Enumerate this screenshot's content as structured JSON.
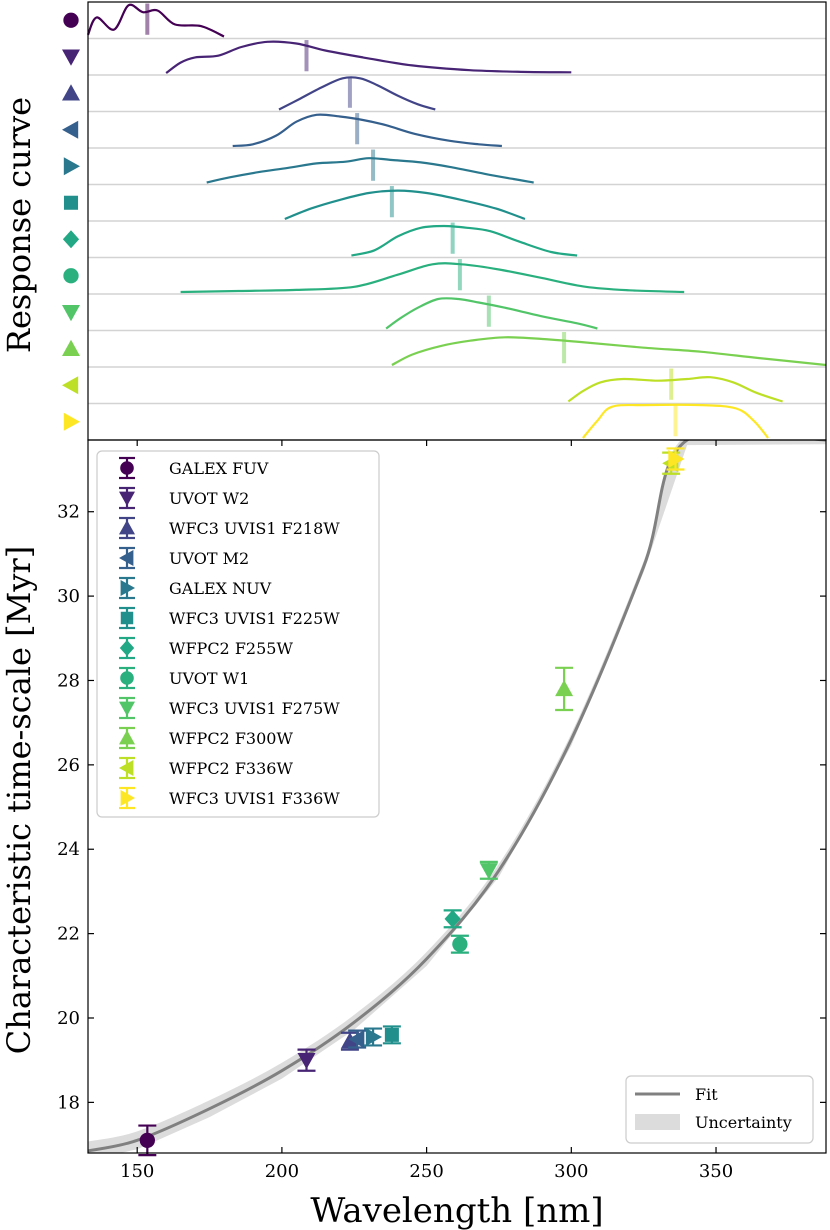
{
  "chart_data": {
    "type": "scatter",
    "xlabel": "Wavelength [nm]",
    "xlim": [
      133,
      388
    ],
    "xticks": [
      150,
      200,
      250,
      300,
      350
    ],
    "top_panel": {
      "ylabel": "Response curve",
      "type": "line"
    },
    "bottom_panel": {
      "ylabel": "Characteristic time-scale [Myr]",
      "ylim": [
        16.8,
        33.7
      ],
      "yticks": [
        18,
        20,
        22,
        24,
        26,
        28,
        30,
        32
      ],
      "legend_position": "upper-left",
      "fit_legend": {
        "fit_label": "Fit",
        "uncertainty_label": "Uncertainty",
        "position": "lower-right"
      },
      "fit_curve": {
        "x": [
          133,
          150,
          175,
          200,
          225,
          250,
          275,
          300,
          325,
          340,
          388
        ],
        "y": [
          16.85,
          17.1,
          17.85,
          18.75,
          19.9,
          21.4,
          23.5,
          26.6,
          30.7,
          33.7,
          33.7
        ]
      }
    },
    "series": [
      {
        "name": "GALEX FUV",
        "color": "#440154",
        "marker": "circle",
        "x": 153.5,
        "y": 17.1,
        "yerr": 0.35,
        "peak": 153.5,
        "curve": [
          [
            133,
            0.05
          ],
          [
            136,
            0.55
          ],
          [
            142,
            0.2
          ],
          [
            147,
            0.9
          ],
          [
            152,
            0.7
          ],
          [
            157,
            0.75
          ],
          [
            163,
            0.35
          ],
          [
            172,
            0.3
          ],
          [
            180,
            0.0
          ]
        ]
      },
      {
        "name": "UVOT W2",
        "color": "#482475",
        "marker": "triangle_down",
        "x": 208.5,
        "y": 19.0,
        "yerr": 0.25,
        "peak": 208.5,
        "curve": [
          [
            160,
            0.0
          ],
          [
            165,
            0.3
          ],
          [
            170,
            0.45
          ],
          [
            178,
            0.5
          ],
          [
            186,
            0.75
          ],
          [
            195,
            0.9
          ],
          [
            205,
            0.85
          ],
          [
            215,
            0.65
          ],
          [
            228,
            0.45
          ],
          [
            245,
            0.22
          ],
          [
            265,
            0.08
          ],
          [
            285,
            0.03
          ],
          [
            300,
            0.02
          ]
        ]
      },
      {
        "name": "WFC3 UVIS1 F218W",
        "color": "#414487",
        "marker": "triangle_up",
        "x": 223.5,
        "y": 19.45,
        "yerr": 0.2,
        "peak": 223.5,
        "curve": [
          [
            199,
            0.0
          ],
          [
            206,
            0.3
          ],
          [
            214,
            0.65
          ],
          [
            221,
            0.9
          ],
          [
            227,
            0.9
          ],
          [
            233,
            0.7
          ],
          [
            240,
            0.4
          ],
          [
            247,
            0.15
          ],
          [
            253,
            0.0
          ]
        ]
      },
      {
        "name": "UVOT M2",
        "color": "#355f8d",
        "marker": "triangle_left",
        "x": 226.0,
        "y": 19.5,
        "yerr": 0.2,
        "peak": 226.0,
        "curve": [
          [
            183,
            0.0
          ],
          [
            190,
            0.05
          ],
          [
            198,
            0.3
          ],
          [
            205,
            0.7
          ],
          [
            212,
            0.9
          ],
          [
            220,
            0.85
          ],
          [
            228,
            0.75
          ],
          [
            236,
            0.6
          ],
          [
            246,
            0.35
          ],
          [
            258,
            0.15
          ],
          [
            268,
            0.05
          ],
          [
            276,
            0.0
          ]
        ]
      },
      {
        "name": "GALEX NUV",
        "color": "#2a788e",
        "marker": "triangle_right",
        "x": 231.5,
        "y": 19.55,
        "yerr": 0.2,
        "peak": 231.5,
        "curve": [
          [
            174,
            0.0
          ],
          [
            182,
            0.15
          ],
          [
            192,
            0.3
          ],
          [
            202,
            0.42
          ],
          [
            212,
            0.55
          ],
          [
            222,
            0.6
          ],
          [
            230,
            0.7
          ],
          [
            238,
            0.65
          ],
          [
            248,
            0.58
          ],
          [
            258,
            0.45
          ],
          [
            270,
            0.25
          ],
          [
            280,
            0.1
          ],
          [
            287,
            0.0
          ]
        ]
      },
      {
        "name": "WFC3 UVIS1 F225W",
        "color": "#21908d",
        "marker": "square",
        "x": 238.0,
        "y": 19.6,
        "yerr": 0.2,
        "peak": 238.0,
        "curve": [
          [
            201,
            0.0
          ],
          [
            210,
            0.3
          ],
          [
            220,
            0.55
          ],
          [
            230,
            0.75
          ],
          [
            240,
            0.82
          ],
          [
            250,
            0.75
          ],
          [
            262,
            0.55
          ],
          [
            274,
            0.3
          ],
          [
            284,
            0.0
          ]
        ]
      },
      {
        "name": "WFPC2 F255W",
        "color": "#22a884",
        "marker": "diamond",
        "x": 259.0,
        "y": 22.35,
        "yerr": 0.2,
        "peak": 259.0,
        "curve": [
          [
            224,
            0.0
          ],
          [
            232,
            0.15
          ],
          [
            240,
            0.55
          ],
          [
            248,
            0.8
          ],
          [
            256,
            0.85
          ],
          [
            264,
            0.8
          ],
          [
            272,
            0.7
          ],
          [
            282,
            0.4
          ],
          [
            293,
            0.1
          ],
          [
            302,
            0.0
          ]
        ]
      },
      {
        "name": "UVOT W1",
        "color": "#2ab07f",
        "marker": "circle",
        "x": 261.5,
        "y": 21.75,
        "yerr": 0.2,
        "peak": 261.5,
        "curve": [
          [
            165,
            0.0
          ],
          [
            185,
            0.03
          ],
          [
            205,
            0.06
          ],
          [
            225,
            0.15
          ],
          [
            240,
            0.5
          ],
          [
            252,
            0.8
          ],
          [
            262,
            0.8
          ],
          [
            275,
            0.65
          ],
          [
            290,
            0.4
          ],
          [
            305,
            0.15
          ],
          [
            320,
            0.05
          ],
          [
            339,
            0.0
          ]
        ]
      },
      {
        "name": "WFC3 UVIS1 F275W",
        "color": "#52c569",
        "marker": "triangle_down",
        "x": 271.5,
        "y": 23.5,
        "yerr": 0.2,
        "peak": 271.5,
        "curve": [
          [
            236,
            0.0
          ],
          [
            241,
            0.3
          ],
          [
            247,
            0.6
          ],
          [
            254,
            0.85
          ],
          [
            261,
            0.85
          ],
          [
            268,
            0.75
          ],
          [
            277,
            0.6
          ],
          [
            290,
            0.35
          ],
          [
            302,
            0.15
          ],
          [
            309,
            0.0
          ]
        ]
      },
      {
        "name": "WFPC2 F300W",
        "color": "#7ad151",
        "marker": "triangle_up",
        "x": 297.5,
        "y": 27.8,
        "yerr": 0.5,
        "peak": 297.5,
        "curve": [
          [
            238,
            0.0
          ],
          [
            245,
            0.3
          ],
          [
            255,
            0.55
          ],
          [
            265,
            0.7
          ],
          [
            277,
            0.8
          ],
          [
            290,
            0.75
          ],
          [
            305,
            0.65
          ],
          [
            325,
            0.5
          ],
          [
            345,
            0.38
          ],
          [
            365,
            0.2
          ],
          [
            388,
            0.0
          ]
        ]
      },
      {
        "name": "WFPC2 F336W",
        "color": "#bddf26",
        "marker": "triangle_left",
        "x": 334.5,
        "y": 33.15,
        "yerr": 0.25,
        "peak": 334.5,
        "curve": [
          [
            299,
            0.0
          ],
          [
            304,
            0.3
          ],
          [
            310,
            0.55
          ],
          [
            318,
            0.65
          ],
          [
            330,
            0.6
          ],
          [
            340,
            0.65
          ],
          [
            348,
            0.7
          ],
          [
            356,
            0.55
          ],
          [
            364,
            0.25
          ],
          [
            373,
            0.0
          ]
        ]
      },
      {
        "name": "WFC3 UVIS1 F336W",
        "color": "#fde725",
        "marker": "triangle_right",
        "x": 336.0,
        "y": 33.25,
        "yerr": 0.25,
        "peak": 336.0,
        "curve": [
          [
            304,
            0.0
          ],
          [
            309,
            0.5
          ],
          [
            314,
            0.9
          ],
          [
            325,
            0.95
          ],
          [
            345,
            0.95
          ],
          [
            357,
            0.85
          ],
          [
            363,
            0.5
          ],
          [
            368,
            0.0
          ]
        ]
      }
    ]
  }
}
